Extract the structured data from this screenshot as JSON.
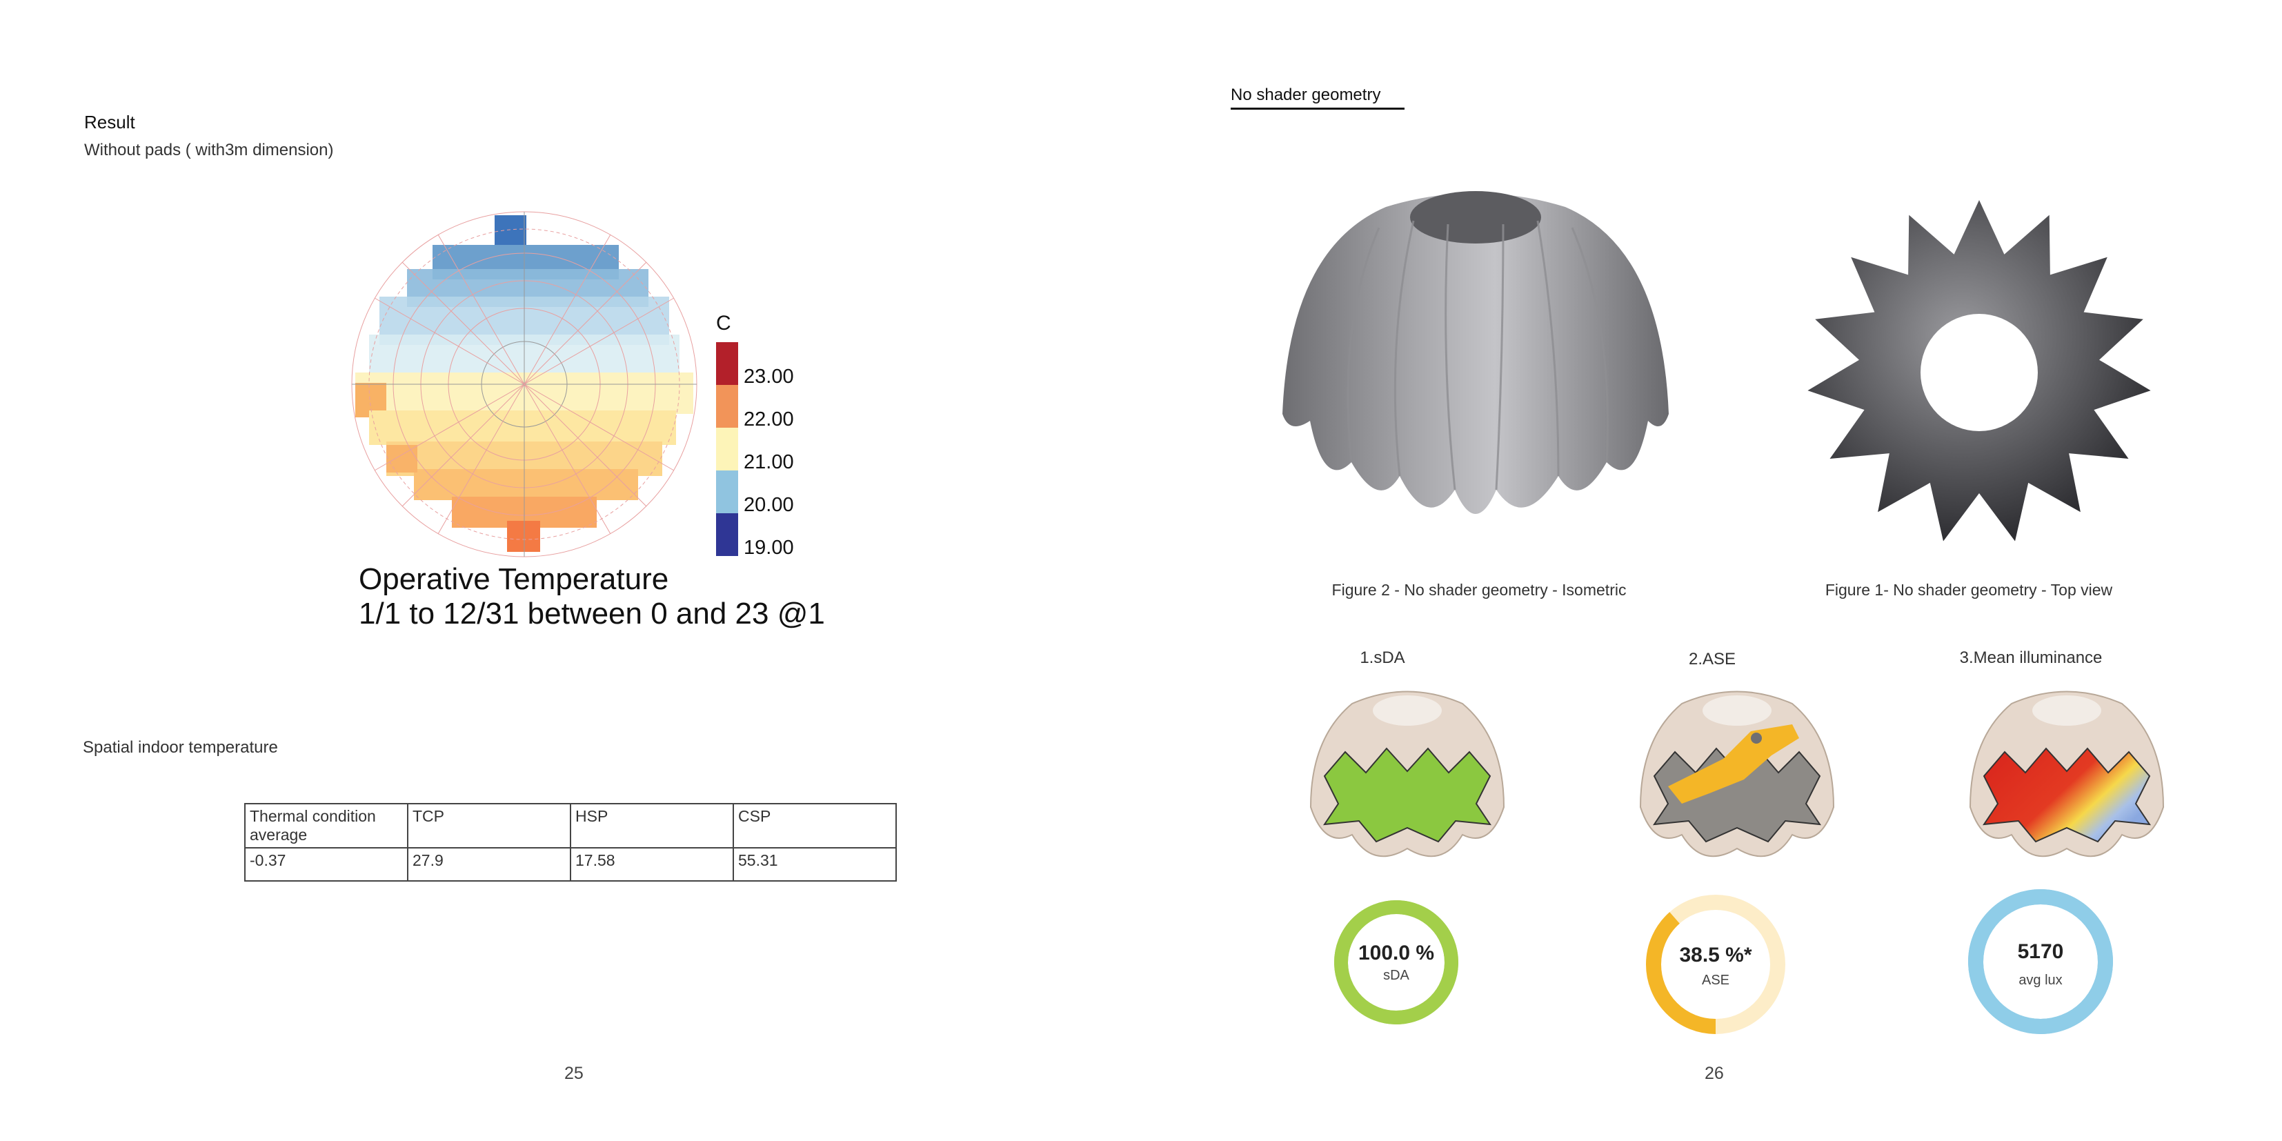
{
  "left_page": {
    "result_heading": "Result",
    "subheading": "Without pads ( with3m dimension)",
    "chart_title_line1": "Operative Temperature",
    "chart_title_line2": "1/1 to 12/31 between 0 and 23 @1",
    "section_label": "Spatial indoor temperature",
    "table": {
      "headers": [
        "Thermal condition average",
        "TCP",
        "HSP",
        "CSP"
      ],
      "rows": [
        [
          "-0.37",
          "27.9",
          "17.58",
          "55.31"
        ]
      ]
    },
    "page_number": "25"
  },
  "chart_data": {
    "type": "heatmap",
    "title": "Operative Temperature",
    "subtitle": "1/1 to 12/31 between 0 and 23 @1",
    "legend": {
      "unit": "C",
      "ticks": [
        "23.00",
        "22.00",
        "21.00",
        "20.00",
        "19.00"
      ],
      "colors": [
        "#b3202a",
        "#f29459",
        "#fdf4b8",
        "#90c4e0",
        "#2f3695"
      ]
    }
  },
  "right_page": {
    "title": "No shader geometry",
    "figure2_caption": "Figure 2 - No shader geometry - Isometric",
    "figure1_caption": "Figure 1- No shader geometry - Top view",
    "metrics": [
      {
        "title": "1.sDA",
        "value": "100.0 %",
        "label": "sDA",
        "fraction": 1.0,
        "color": "#a3cf4a",
        "track": "#a3cf4a"
      },
      {
        "title": "2.ASE",
        "value": "38.5 %*",
        "label": "ASE",
        "fraction": 0.385,
        "color": "#f4b627",
        "track": "#fdedc8"
      },
      {
        "title": "3.Mean illuminance",
        "value": "5170",
        "label": "avg lux",
        "fraction": 1.0,
        "color": "#8fcde8",
        "track": "#8fcde8"
      }
    ],
    "page_number": "26"
  }
}
